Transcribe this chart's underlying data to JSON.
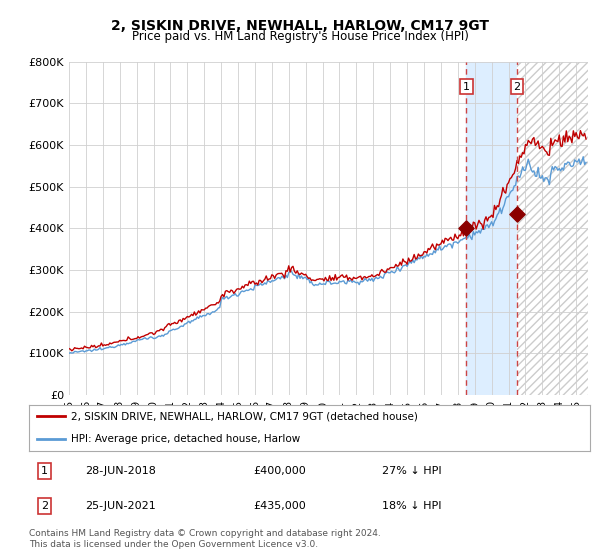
{
  "title": "2, SISKIN DRIVE, NEWHALL, HARLOW, CM17 9GT",
  "subtitle": "Price paid vs. HM Land Registry's House Price Index (HPI)",
  "ylim": [
    0,
    800000
  ],
  "yticks": [
    0,
    100000,
    200000,
    300000,
    400000,
    500000,
    600000,
    700000,
    800000
  ],
  "ytick_labels": [
    "£0",
    "£100K",
    "£200K",
    "£300K",
    "£400K",
    "£500K",
    "£600K",
    "£700K",
    "£800K"
  ],
  "hpi_color": "#5b9bd5",
  "price_color": "#c00000",
  "marker_color": "#8b0000",
  "vline_color": "#cc4444",
  "sale1_year": 2018.5,
  "sale1_price": 400000,
  "sale2_year": 2021.5,
  "sale2_price": 435000,
  "legend_entry1": "2, SISKIN DRIVE, NEWHALL, HARLOW, CM17 9GT (detached house)",
  "legend_entry2": "HPI: Average price, detached house, Harlow",
  "footnote": "Contains HM Land Registry data © Crown copyright and database right 2024.\nThis data is licensed under the Open Government Licence v3.0.",
  "background_color": "#ffffff",
  "grid_color": "#d0d0d0",
  "shade_color": "#ddeeff",
  "hatch_color": "#cccccc"
}
